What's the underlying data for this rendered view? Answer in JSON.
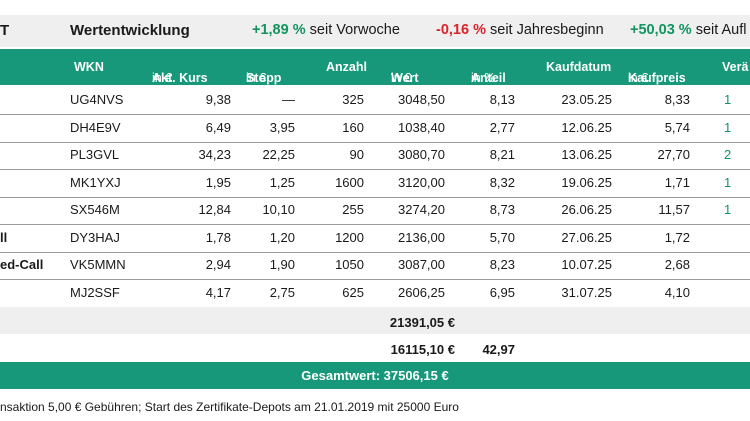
{
  "top": {
    "left_label": "T",
    "title": "Wertentwicklung",
    "perf": [
      {
        "value": "+1,89 %",
        "text": " seit Vorwoche",
        "color": "green"
      },
      {
        "value": "-0,16 %",
        "text": " seit Jahresbeginn",
        "color": "red"
      },
      {
        "value": "+50,03 %",
        "text": " seit Aufl",
        "color": "green"
      }
    ]
  },
  "columns": {
    "wkn": "WKN",
    "kurs": "Akt. Kurs",
    "kurs_unit": " in €",
    "stopp": "Stopp",
    "stopp_unit": " in €",
    "anzahl": "Anzahl",
    "wert": "Wert",
    "wert_unit": " in €",
    "anteil": "Anteil",
    "anteil_unit": " in %",
    "kaufdatum": "Kaufdatum",
    "kaufpreis": "Kaufpreis",
    "kaufpreis_unit": " in €",
    "veraend": "Verä"
  },
  "rows": [
    {
      "name": "",
      "wkn": "UG4NVS",
      "kurs": "9,38",
      "stopp": "—",
      "anzahl": "325",
      "wert": "3048,50",
      "anteil": "8,13",
      "datum": "23.05.25",
      "preis": "8,33",
      "chg": "1"
    },
    {
      "name": "",
      "wkn": "DH4E9V",
      "kurs": "6,49",
      "stopp": "3,95",
      "anzahl": "160",
      "wert": "1038,40",
      "anteil": "2,77",
      "datum": "12.06.25",
      "preis": "5,74",
      "chg": "1"
    },
    {
      "name": "",
      "wkn": "PL3GVL",
      "kurs": "34,23",
      "stopp": "22,25",
      "anzahl": "90",
      "wert": "3080,70",
      "anteil": "8,21",
      "datum": "13.06.25",
      "preis": "27,70",
      "chg": "2"
    },
    {
      "name": "",
      "wkn": "MK1YXJ",
      "kurs": "1,95",
      "stopp": "1,25",
      "anzahl": "1600",
      "wert": "3120,00",
      "anteil": "8,32",
      "datum": "19.06.25",
      "preis": "1,71",
      "chg": "1"
    },
    {
      "name": "",
      "wkn": "SX546M",
      "kurs": "12,84",
      "stopp": "10,10",
      "anzahl": "255",
      "wert": "3274,20",
      "anteil": "8,73",
      "datum": "26.06.25",
      "preis": "11,57",
      "chg": "1"
    },
    {
      "name": "ll",
      "wkn": "DY3HAJ",
      "kurs": "1,78",
      "stopp": "1,20",
      "anzahl": "1200",
      "wert": "2136,00",
      "anteil": "5,70",
      "datum": "27.06.25",
      "preis": "1,72",
      "chg": ""
    },
    {
      "name": "ed-Call",
      "wkn": "VK5MMN",
      "kurs": "2,94",
      "stopp": "1,90",
      "anzahl": "1050",
      "wert": "3087,00",
      "anteil": "8,23",
      "datum": "10.07.25",
      "preis": "2,68",
      "chg": ""
    },
    {
      "name": "",
      "wkn": "MJ2SSF",
      "kurs": "4,17",
      "stopp": "2,75",
      "anzahl": "625",
      "wert": "2606,25",
      "anteil": "6,95",
      "datum": "31.07.25",
      "preis": "4,10",
      "chg": ""
    }
  ],
  "summary": {
    "wert_sum": "21391,05 €",
    "cash": "16115,10 €",
    "cash_anteil": "42,97"
  },
  "total": "Gesamtwert: 37506,15 €",
  "footnote": "nsaktion 5,00 € Gebühren; Start des Zertifikate-Depots am 21.01.2019 mit 25000 Euro",
  "colors": {
    "accent": "#17987a",
    "positive": "#12945f",
    "negative": "#d8232a",
    "band": "#efefef"
  }
}
